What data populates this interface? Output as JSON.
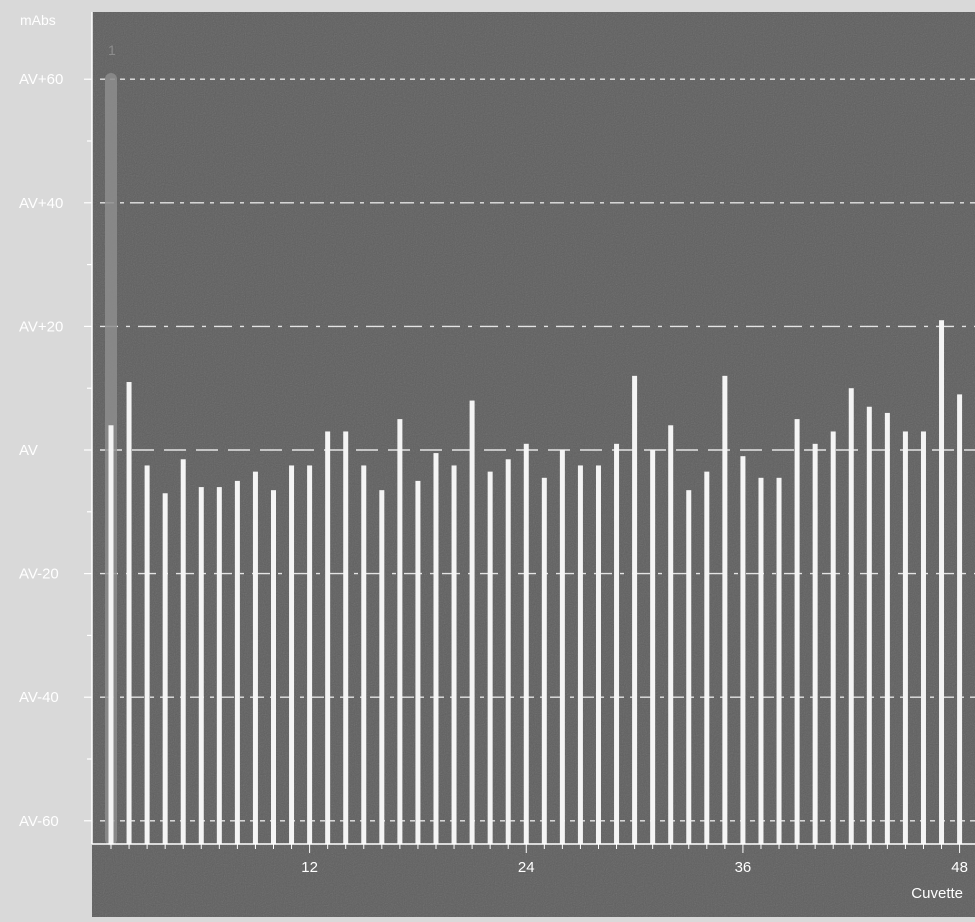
{
  "chart_data": {
    "type": "bar",
    "ylabel": "mAbs",
    "xlabel": "Cuvette",
    "x_ticks": [
      12,
      24,
      36,
      48
    ],
    "y_ticks": [
      {
        "value": 60,
        "label": "AV+60"
      },
      {
        "value": 40,
        "label": "AV+40"
      },
      {
        "value": 20,
        "label": "AV+20"
      },
      {
        "value": 0,
        "label": "AV"
      },
      {
        "value": -20,
        "label": "AV-20"
      },
      {
        "value": -40,
        "label": "AV-40"
      },
      {
        "value": -60,
        "label": "AV-60"
      }
    ],
    "ylim": [
      -64,
      65
    ],
    "xlim": [
      0.5,
      48.5
    ],
    "grid": true,
    "highlight": {
      "cuvette": 1,
      "label": "1",
      "range": [
        -64,
        61
      ]
    },
    "x": [
      1,
      2,
      3,
      4,
      5,
      6,
      7,
      8,
      9,
      10,
      11,
      12,
      13,
      14,
      15,
      16,
      17,
      18,
      19,
      20,
      21,
      22,
      23,
      24,
      25,
      26,
      27,
      28,
      29,
      30,
      31,
      32,
      33,
      34,
      35,
      36,
      37,
      38,
      39,
      40,
      41,
      42,
      43,
      44,
      45,
      46,
      47,
      48
    ],
    "values": [
      4,
      11,
      -2.5,
      -7,
      -1.5,
      -6,
      -6,
      -5,
      -3.5,
      -6.5,
      -2.5,
      -2.5,
      3,
      3,
      -2.5,
      -6.5,
      5,
      -5,
      -0.5,
      -2.5,
      8,
      -3.5,
      -1.5,
      1,
      -4.5,
      0,
      -2.5,
      -2.5,
      1,
      12,
      0,
      4,
      -6.5,
      -3.5,
      12,
      -1,
      -4.5,
      -4.5,
      5,
      1,
      3,
      10,
      7,
      6,
      3,
      3,
      21,
      9
    ]
  }
}
